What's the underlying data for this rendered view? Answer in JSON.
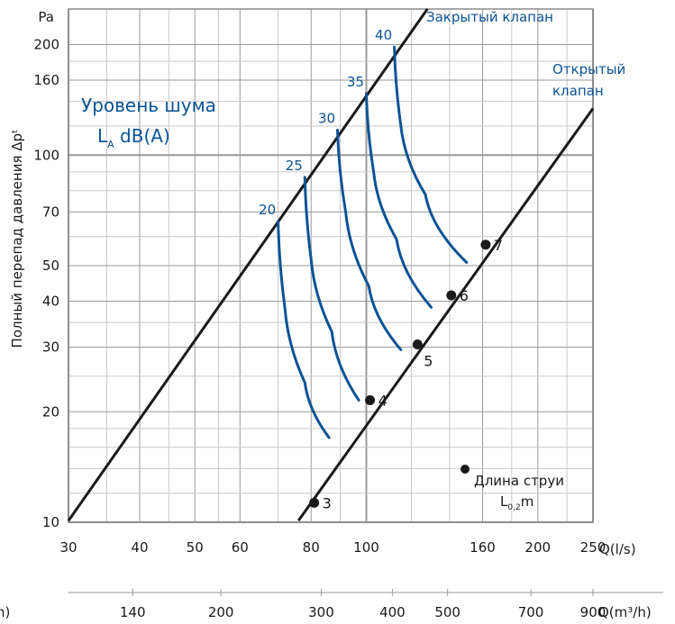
{
  "chart_data": {
    "type": "line",
    "title": "",
    "xlabel_primary": "Q(l/s)",
    "xlabel_secondary": "Q(m³/h)",
    "ylabel": "Полный перепад давления Δpᵗ",
    "y_unit": "Pa",
    "xlim": [
      30,
      250
    ],
    "ylim": [
      10,
      250
    ],
    "x_scale": "log",
    "y_scale": "log",
    "grid": true,
    "x_ticks": [
      {
        "value": 30,
        "label": "30"
      },
      {
        "value": 40,
        "label": "40"
      },
      {
        "value": 50,
        "label": "50"
      },
      {
        "value": 60,
        "label": "60"
      },
      {
        "value": 80,
        "label": "80"
      },
      {
        "value": 100,
        "label": "100"
      },
      {
        "value": 160,
        "label": "160"
      },
      {
        "value": 200,
        "label": "200"
      },
      {
        "value": 250,
        "label": "250"
      }
    ],
    "x_secondary_ticks": [
      {
        "value": 140,
        "label": "140"
      },
      {
        "value": 200,
        "label": "200"
      },
      {
        "value": 300,
        "label": "300"
      },
      {
        "value": 400,
        "label": "400"
      },
      {
        "value": 500,
        "label": "500"
      },
      {
        "value": 700,
        "label": "700"
      },
      {
        "value": 900,
        "label": "900"
      }
    ],
    "y_ticks": [
      {
        "value": 10,
        "label": "10"
      },
      {
        "value": 20,
        "label": "20"
      },
      {
        "value": 30,
        "label": "30"
      },
      {
        "value": 40,
        "label": "40"
      },
      {
        "value": 50,
        "label": "50"
      },
      {
        "value": 70,
        "label": "70"
      },
      {
        "value": 100,
        "label": "100"
      },
      {
        "value": 160,
        "label": "160"
      },
      {
        "value": 200,
        "label": "200"
      }
    ],
    "series": [
      {
        "name": "Закрытый клапан",
        "points": [
          [
            30,
            10.1
          ],
          [
            128,
            250
          ]
        ]
      },
      {
        "name": "Открытый клапан",
        "points": [
          [
            76,
            10.1
          ],
          [
            250,
            134
          ]
        ]
      }
    ],
    "noise_curves": [
      {
        "label": "20",
        "points": [
          [
            70,
            66
          ],
          [
            72,
            38
          ],
          [
            78,
            24
          ],
          [
            86,
            17
          ]
        ]
      },
      {
        "label": "25",
        "points": [
          [
            78,
            87
          ],
          [
            80,
            52
          ],
          [
            87,
            33
          ],
          [
            97,
            21.5
          ]
        ]
      },
      {
        "label": "30",
        "points": [
          [
            89,
            117
          ],
          [
            92,
            70
          ],
          [
            101,
            44
          ],
          [
            115,
            29.5
          ]
        ]
      },
      {
        "label": "35",
        "points": [
          [
            100,
            147
          ],
          [
            103,
            90
          ],
          [
            113,
            59
          ],
          [
            130,
            38.5
          ]
        ]
      },
      {
        "label": "40",
        "points": [
          [
            112,
            197
          ],
          [
            115,
            120
          ],
          [
            127,
            78
          ],
          [
            150,
            51
          ]
        ]
      }
    ],
    "markers": [
      {
        "label": "3",
        "x": 81,
        "y": 11.3
      },
      {
        "label": "4",
        "x": 101.5,
        "y": 21.5
      },
      {
        "label": "5",
        "x": 123,
        "y": 30.5
      },
      {
        "label": "6",
        "x": 141,
        "y": 41.5
      },
      {
        "label": "7",
        "x": 162,
        "y": 57
      }
    ],
    "annotations": {
      "noise_title": "Уровень шума",
      "noise_unit_main": "L",
      "noise_unit_sub": "A",
      "noise_unit_rest": " dB(A)",
      "jet_legend": "Длина струи",
      "jet_unit_main": "L",
      "jet_unit_sub": "0,2",
      "jet_unit_rest": "m"
    },
    "fragment_label": "h)"
  },
  "colors": {
    "line": "#1a1a1a",
    "curve": "#0b5394",
    "grid": "#c8c8c8",
    "grid_major": "#9a9a9a"
  }
}
